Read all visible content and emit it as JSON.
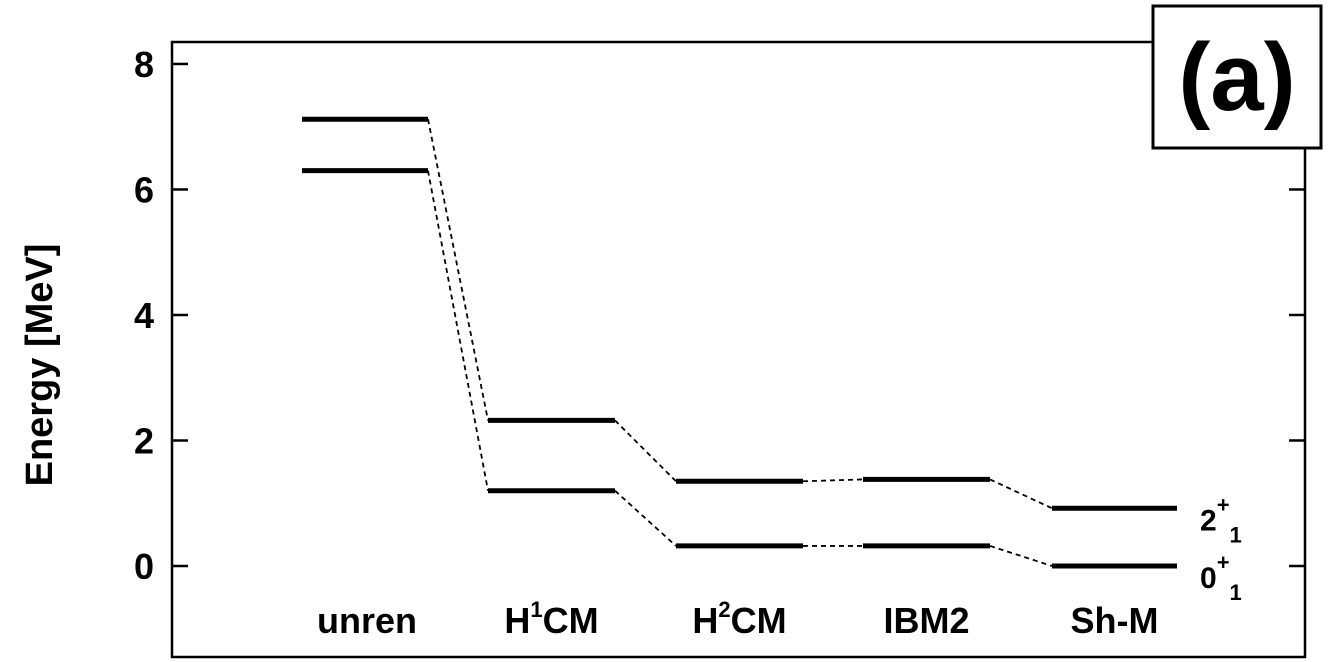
{
  "chart_data": {
    "type": "level-scheme",
    "ylabel": "Energy [MeV]",
    "ylim": [
      -1.45,
      8.35
    ],
    "yticks": [
      0,
      2,
      4,
      6,
      8
    ],
    "grid": false,
    "panel_label": "(a)",
    "categories": [
      {
        "label": "unren",
        "main": "unren",
        "sup": "",
        "suffix": ""
      },
      {
        "label": "H1CM",
        "main": "H",
        "sup": "1",
        "suffix": "CM"
      },
      {
        "label": "H2CM",
        "main": "H",
        "sup": "2",
        "suffix": "CM"
      },
      {
        "label": "IBM2",
        "main": "IBM2",
        "sup": "",
        "suffix": ""
      },
      {
        "label": "Sh-M",
        "main": "Sh-M",
        "sup": "",
        "suffix": ""
      }
    ],
    "series": [
      {
        "name": "0+1",
        "main": "0",
        "sup": "+",
        "sub": "1",
        "values": [
          6.3,
          1.2,
          0.32,
          0.32,
          0.0
        ]
      },
      {
        "name": "2+1",
        "main": "2",
        "sup": "+",
        "sub": "1",
        "values": [
          7.12,
          2.32,
          1.35,
          1.38,
          0.92
        ]
      }
    ]
  }
}
